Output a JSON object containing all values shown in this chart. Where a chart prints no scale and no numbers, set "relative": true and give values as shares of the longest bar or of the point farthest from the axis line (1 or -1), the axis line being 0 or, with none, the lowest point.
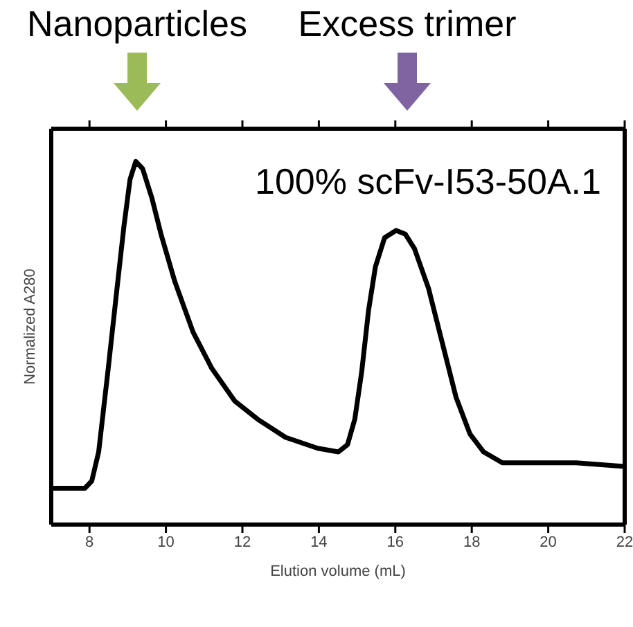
{
  "chart_data": {
    "type": "line",
    "relative": true,
    "xlabel": "Elution volume (mL)",
    "ylabel": "Normalized A280",
    "xlim": [
      7,
      22
    ],
    "xticks": [
      8,
      10,
      12,
      14,
      16,
      18,
      20,
      22
    ],
    "marker": "none",
    "line_style": "solid",
    "annotations": [
      "Nanoparticles",
      "Excess trimer",
      "100% scFv-I53-50A.1"
    ],
    "x": [
      7.03,
      7.88,
      8.06,
      8.24,
      8.48,
      8.72,
      8.9,
      9.06,
      9.21,
      9.39,
      9.63,
      9.87,
      10.23,
      10.71,
      11.2,
      11.8,
      12.4,
      13.13,
      13.97,
      14.51,
      14.75,
      14.94,
      15.12,
      15.3,
      15.48,
      15.72,
      16.02,
      16.26,
      16.5,
      16.87,
      17.23,
      17.59,
      17.95,
      18.31,
      18.8,
      19.52,
      20.73,
      21.99
    ],
    "series": [
      {
        "color": "#000000",
        "values": [
          0.1,
          0.1,
          0.12,
          0.2,
          0.42,
          0.65,
          0.82,
          0.95,
          1.0,
          0.98,
          0.9,
          0.8,
          0.67,
          0.53,
          0.43,
          0.34,
          0.29,
          0.24,
          0.21,
          0.2,
          0.22,
          0.29,
          0.42,
          0.59,
          0.71,
          0.79,
          0.81,
          0.8,
          0.76,
          0.65,
          0.5,
          0.35,
          0.25,
          0.2,
          0.17,
          0.17,
          0.17,
          0.16
        ]
      }
    ]
  }
}
